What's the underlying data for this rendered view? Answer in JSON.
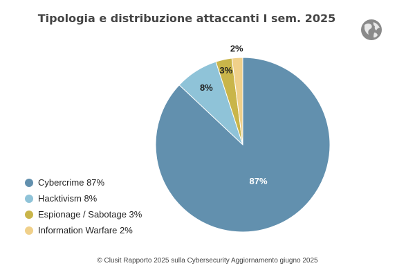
{
  "chart_data": {
    "type": "pie",
    "title": "Tipologia e distribuzione attaccanti I sem. 2025",
    "slices": [
      {
        "name": "Cybercrime",
        "value": 87,
        "label": "87%",
        "legend": "Cybercrime 87%",
        "color": "#6290ae",
        "label_color": "#ffffff"
      },
      {
        "name": "Hacktivism",
        "value": 8,
        "label": "8%",
        "legend": "Hacktivism 8%",
        "color": "#8fc3d8",
        "label_color": "#222222"
      },
      {
        "name": "Espionage / Sabotage",
        "value": 3,
        "label": "3%",
        "legend": "Espionage / Sabotage 3%",
        "color": "#c9b54a",
        "label_color": "#222222"
      },
      {
        "name": "Information Warfare",
        "value": 2,
        "label": "2%",
        "legend": "Information Warfare 2%",
        "color": "#f0d08a",
        "label_color": "#222222"
      }
    ],
    "start_angle": "12 o'clock",
    "direction": "clockwise",
    "legend_placement": "bottom-left"
  },
  "logo_icon": "globe-icon",
  "footer": "© Clusit   Rapporto 2025 sulla Cybersecurity   Aggiornamento giugno 2025"
}
